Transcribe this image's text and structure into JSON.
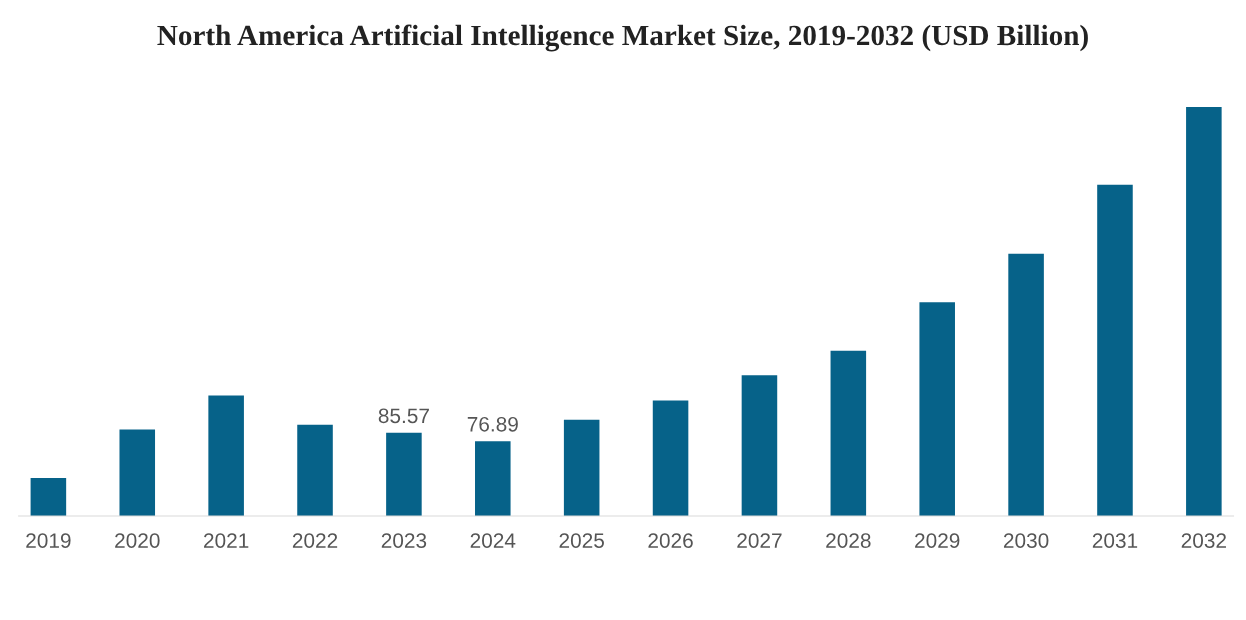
{
  "chart_data": {
    "type": "bar",
    "title": "North America Artificial Intelligence Market Size, 2019-2032 (USD Billion)",
    "categories": [
      "2019",
      "2020",
      "2021",
      "2022",
      "2023",
      "2024",
      "2025",
      "2026",
      "2027",
      "2028",
      "2029",
      "2030",
      "2031",
      "2032"
    ],
    "values": [
      39,
      89,
      124,
      94,
      85.57,
      76.89,
      99,
      119,
      145,
      170,
      220,
      270,
      341,
      421
    ],
    "value_labels": [
      null,
      null,
      null,
      null,
      "85.57",
      "76.89",
      null,
      null,
      null,
      null,
      null,
      null,
      null,
      null
    ],
    "color": "#066289",
    "grid": false,
    "legend": false
  }
}
